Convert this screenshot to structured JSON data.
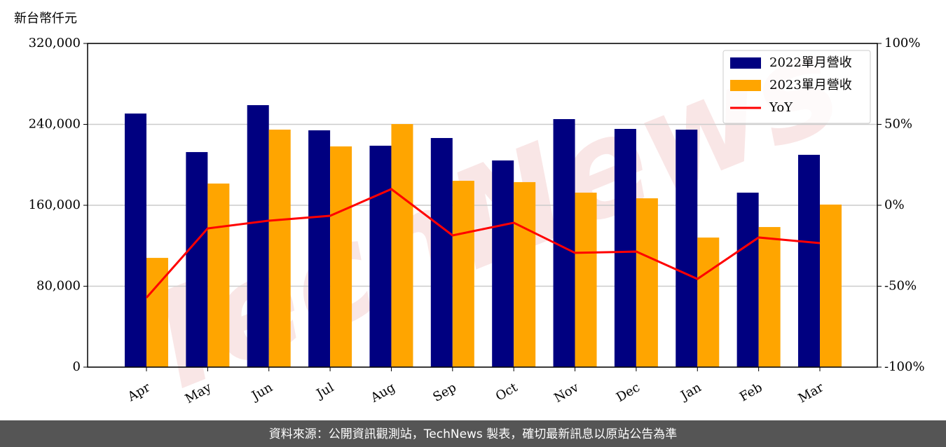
{
  "chart_data": {
    "type": "bar",
    "unit_label": "新台幣仟元",
    "watermark": "TechNews",
    "footer": "資料來源：公開資訊觀測站，TechNews 製表，確切最新訊息以原站公告為準",
    "categories": [
      "Apr",
      "May",
      "Jun",
      "Jul",
      "Aug",
      "Sep",
      "Oct",
      "Nov",
      "Dec",
      "Jan",
      "Feb",
      "Mar"
    ],
    "series": [
      {
        "name": "2022單月營收",
        "color": "#000080",
        "values": [
          250700,
          212600,
          259000,
          234100,
          218900,
          226500,
          204300,
          245200,
          235500,
          234800,
          172500,
          209900
        ]
      },
      {
        "name": "2023單月營收",
        "color": "#ffa500",
        "values": [
          108000,
          181500,
          234800,
          218200,
          240300,
          184200,
          182900,
          172500,
          166900,
          128100,
          138500,
          160700
        ]
      },
      {
        "name": "YoY",
        "type": "line",
        "axis": "y2",
        "color": "#ff0000",
        "values": [
          -57.1,
          -14.3,
          -9.5,
          -6.5,
          10,
          -18.6,
          -10.8,
          -29.4,
          -28.6,
          -45.5,
          -19.9,
          -23.4
        ]
      }
    ],
    "ylim": [
      0,
      320000
    ],
    "yticks": [
      0,
      {
        "value": 80000,
        "label": "80,000"
      },
      {
        "value": 160000,
        "label": "160,000"
      },
      {
        "value": 240000,
        "label": "240,000"
      },
      {
        "value": 320000,
        "label": "320,000"
      }
    ],
    "y2lim": [
      -100,
      100
    ],
    "y2ticks": [
      {
        "value": -100,
        "label": "-100%"
      },
      {
        "value": -50,
        "label": "-50%"
      },
      {
        "value": 0,
        "label": "0%"
      },
      {
        "value": 50,
        "label": "50%"
      },
      {
        "value": 100,
        "label": "100%"
      }
    ],
    "grid": true,
    "legend": "upper-right"
  }
}
